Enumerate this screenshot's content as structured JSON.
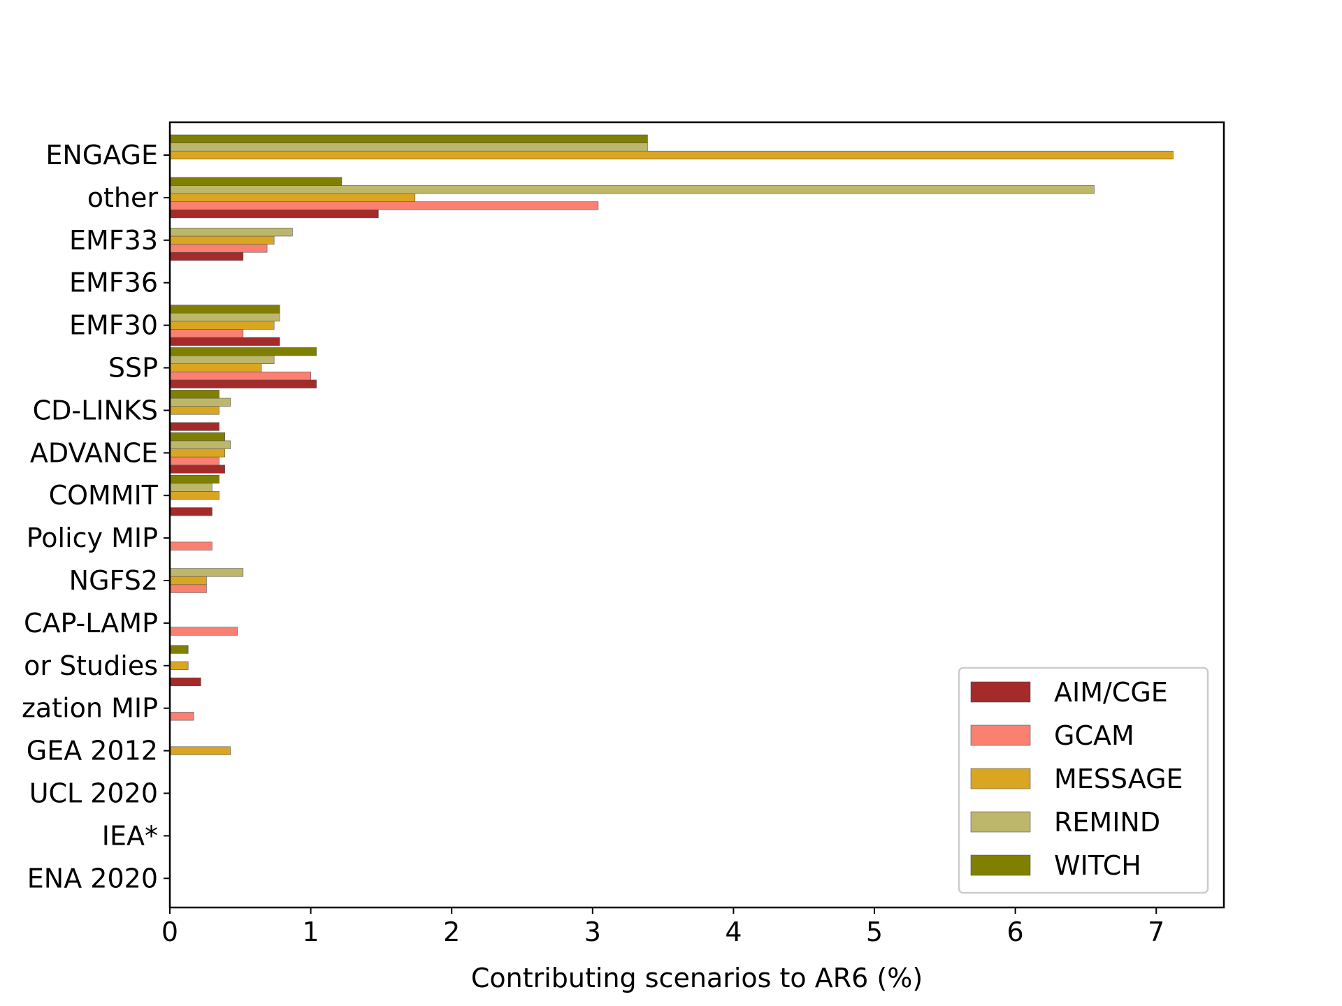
{
  "chart_data": {
    "type": "bar",
    "orientation": "horizontal",
    "xlabel": "Contributing scenarios to AR6 (%)",
    "ylabel": "",
    "xlim": [
      0,
      7.48
    ],
    "xticks": [
      0,
      1,
      2,
      3,
      4,
      5,
      6,
      7
    ],
    "grid": false,
    "legend_position": "lower-right",
    "categories": [
      "ENGAGE",
      "other",
      "EMF33",
      "EMF36",
      "EMF30",
      "SSP",
      "CD-LINKS",
      "ADVANCE",
      "COMMIT",
      "Policy MIP",
      "NGFS2",
      "CAP-LAMP",
      "or Studies",
      "zation MIP",
      "GEA 2012",
      "UCL 2020",
      "IEA*",
      "ENA 2020"
    ],
    "series": [
      {
        "name": "AIM/CGE",
        "color": "#a52a2a",
        "values": [
          0,
          1.48,
          0.52,
          0,
          0.78,
          1.04,
          0.35,
          0.39,
          0.3,
          0,
          0,
          0,
          0.22,
          0,
          0,
          0,
          0,
          0
        ]
      },
      {
        "name": "GCAM",
        "color": "#fa8072",
        "values": [
          0,
          3.04,
          0.69,
          0,
          0.52,
          1.0,
          0,
          0.35,
          0,
          0.3,
          0.26,
          0.48,
          0,
          0.17,
          0,
          0,
          0,
          0
        ]
      },
      {
        "name": "MESSAGE",
        "color": "#daa520",
        "values": [
          7.12,
          1.74,
          0.74,
          0,
          0.74,
          0.65,
          0.35,
          0.39,
          0.35,
          0,
          0.26,
          0,
          0.13,
          0,
          0.43,
          0,
          0,
          0
        ]
      },
      {
        "name": "REMIND",
        "color": "#bdb76b",
        "values": [
          3.39,
          6.56,
          0.87,
          0,
          0.78,
          0.74,
          0.43,
          0.43,
          0.3,
          0,
          0.52,
          0,
          0,
          0,
          0,
          0,
          0,
          0
        ]
      },
      {
        "name": "WITCH",
        "color": "#808000",
        "values": [
          3.39,
          1.22,
          0,
          0,
          0.78,
          1.04,
          0.35,
          0.39,
          0.35,
          0,
          0,
          0,
          0.13,
          0,
          0,
          0,
          0,
          0
        ]
      }
    ]
  }
}
